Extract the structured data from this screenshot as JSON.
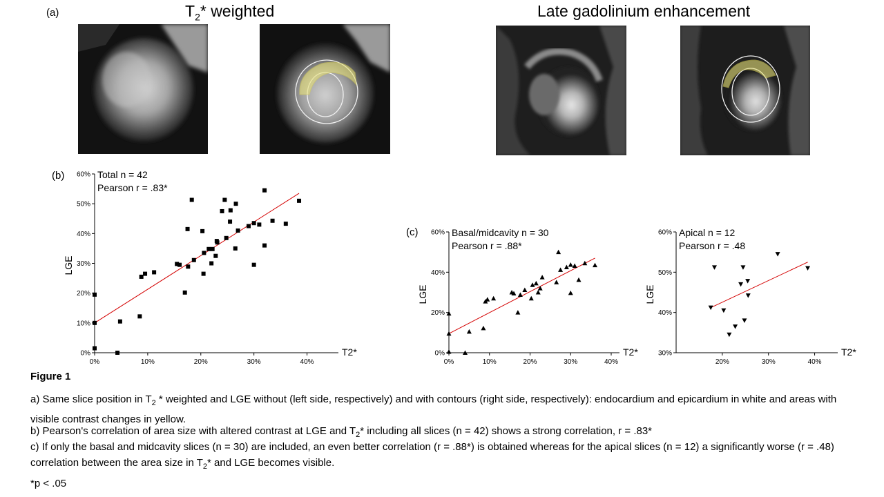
{
  "panel_a": {
    "label": "(a)",
    "t2_title_prefix": "T",
    "t2_title_sub": "2",
    "t2_title_suffix": "* weighted",
    "lge_title": "Late gadolinium enhancement"
  },
  "figure_title": "Figure 1",
  "caption": {
    "a_1": "a) Same slice position in T",
    "a_sub": "2",
    "a_2": " * weighted and LGE without (left side, respectively) and with contours (right side, respectively): endocardium and epicardium in white and areas with visible contrast changes in yellow.",
    "b_1": "b) Pearson's correlation of area size with altered contrast at LGE and T",
    "b_sub": "2",
    "b_2": "* including all slices (n = 42) shows a strong correlation, r = .83*",
    "c_1": "c) If only the basal and midcavity slices (n = 30) are included, an even better correlation (r = .88*) is obtained whereas for the apical slices  (n = 12) a significantly worse (r = .48) correlation between the area size in T",
    "c_sub": "2",
    "c_2": "* and LGE becomes visible."
  },
  "footnote": "*p < .05",
  "chart_data": [
    {
      "id": "b",
      "type": "scatter",
      "panel_label": "(b)",
      "annotation_lines": [
        "Total n = 42",
        "Pearson r = .83*"
      ],
      "xlabel": "T2*",
      "ylabel": "LGE",
      "xlim": [
        0,
        0.45
      ],
      "ylim": [
        0,
        0.6
      ],
      "xticks": [
        0,
        0.1,
        0.2,
        0.3,
        0.4
      ],
      "xtick_labels": [
        "0%",
        "10%",
        "20%",
        "30%",
        "40%"
      ],
      "yticks": [
        0,
        0.1,
        0.2,
        0.3,
        0.4,
        0.5,
        0.6
      ],
      "ytick_labels": [
        "0%",
        "10%",
        "20%",
        "30%",
        "40%",
        "50%",
        "60%"
      ],
      "marker": "square",
      "fit_line": [
        [
          0,
          0.1
        ],
        [
          0.385,
          0.535
        ]
      ],
      "points": [
        [
          0.0,
          0.195
        ],
        [
          0.0,
          0.1
        ],
        [
          0.0,
          0.015
        ],
        [
          0.043,
          0.0
        ],
        [
          0.048,
          0.105
        ],
        [
          0.085,
          0.122
        ],
        [
          0.088,
          0.255
        ],
        [
          0.095,
          0.265
        ],
        [
          0.112,
          0.27
        ],
        [
          0.155,
          0.298
        ],
        [
          0.16,
          0.295
        ],
        [
          0.17,
          0.202
        ],
        [
          0.175,
          0.415
        ],
        [
          0.176,
          0.289
        ],
        [
          0.183,
          0.513
        ],
        [
          0.187,
          0.311
        ],
        [
          0.203,
          0.408
        ],
        [
          0.205,
          0.265
        ],
        [
          0.206,
          0.335
        ],
        [
          0.215,
          0.348
        ],
        [
          0.22,
          0.3
        ],
        [
          0.222,
          0.348
        ],
        [
          0.228,
          0.325
        ],
        [
          0.23,
          0.375
        ],
        [
          0.231,
          0.37
        ],
        [
          0.24,
          0.475
        ],
        [
          0.245,
          0.513
        ],
        [
          0.248,
          0.385
        ],
        [
          0.255,
          0.44
        ],
        [
          0.256,
          0.478
        ],
        [
          0.265,
          0.35
        ],
        [
          0.266,
          0.5
        ],
        [
          0.27,
          0.41
        ],
        [
          0.29,
          0.425
        ],
        [
          0.3,
          0.435
        ],
        [
          0.3,
          0.295
        ],
        [
          0.31,
          0.43
        ],
        [
          0.32,
          0.545
        ],
        [
          0.32,
          0.36
        ],
        [
          0.335,
          0.443
        ],
        [
          0.36,
          0.433
        ],
        [
          0.385,
          0.51
        ]
      ]
    },
    {
      "id": "c-basal",
      "type": "scatter",
      "panel_label": "(c)",
      "annotation_lines": [
        "Basal/midcavity n = 30",
        "Pearson r = .88*"
      ],
      "xlabel": "T2*",
      "ylabel": "LGE",
      "xlim": [
        0,
        0.4
      ],
      "ylim": [
        0,
        0.6
      ],
      "xticks": [
        0,
        0.1,
        0.2,
        0.3,
        0.4
      ],
      "xtick_labels": [
        "0%",
        "10%",
        "20%",
        "30%",
        "40%"
      ],
      "yticks": [
        0,
        0.2,
        0.4,
        0.6
      ],
      "ytick_labels": [
        "0%",
        "20%",
        "40%",
        "60%"
      ],
      "marker": "triangle-up",
      "fit_line": [
        [
          0,
          0.095
        ],
        [
          0.36,
          0.47
        ]
      ],
      "points": [
        [
          0.0,
          0.195
        ],
        [
          0.0,
          0.095
        ],
        [
          0.0,
          0.005
        ],
        [
          0.04,
          0.0
        ],
        [
          0.05,
          0.105
        ],
        [
          0.085,
          0.122
        ],
        [
          0.09,
          0.255
        ],
        [
          0.095,
          0.265
        ],
        [
          0.11,
          0.27
        ],
        [
          0.155,
          0.3
        ],
        [
          0.16,
          0.295
        ],
        [
          0.17,
          0.2
        ],
        [
          0.176,
          0.288
        ],
        [
          0.187,
          0.312
        ],
        [
          0.203,
          0.27
        ],
        [
          0.206,
          0.337
        ],
        [
          0.215,
          0.345
        ],
        [
          0.22,
          0.3
        ],
        [
          0.225,
          0.32
        ],
        [
          0.23,
          0.375
        ],
        [
          0.265,
          0.35
        ],
        [
          0.27,
          0.5
        ],
        [
          0.275,
          0.412
        ],
        [
          0.29,
          0.425
        ],
        [
          0.3,
          0.437
        ],
        [
          0.3,
          0.297
        ],
        [
          0.31,
          0.432
        ],
        [
          0.32,
          0.362
        ],
        [
          0.335,
          0.445
        ],
        [
          0.36,
          0.435
        ]
      ]
    },
    {
      "id": "c-apical",
      "type": "scatter",
      "panel_label": "",
      "annotation_lines": [
        "Apical n = 12",
        "Pearson r = .48"
      ],
      "xlabel": "T2*",
      "ylabel": "LGE",
      "xlim": [
        0.1,
        0.45
      ],
      "ylim": [
        0.3,
        0.6
      ],
      "xticks": [
        0.2,
        0.3,
        0.4
      ],
      "xtick_labels": [
        "20%",
        "30%",
        "40%"
      ],
      "yticks": [
        0.3,
        0.4,
        0.5,
        0.6
      ],
      "ytick_labels": [
        "30%",
        "40%",
        "50%",
        "60%"
      ],
      "marker": "triangle-down",
      "fit_line": [
        [
          0.175,
          0.412
        ],
        [
          0.385,
          0.525
        ]
      ],
      "points": [
        [
          0.175,
          0.412
        ],
        [
          0.183,
          0.512
        ],
        [
          0.203,
          0.405
        ],
        [
          0.215,
          0.345
        ],
        [
          0.228,
          0.365
        ],
        [
          0.24,
          0.47
        ],
        [
          0.245,
          0.512
        ],
        [
          0.248,
          0.38
        ],
        [
          0.255,
          0.478
        ],
        [
          0.256,
          0.442
        ],
        [
          0.32,
          0.545
        ],
        [
          0.385,
          0.51
        ]
      ]
    }
  ]
}
